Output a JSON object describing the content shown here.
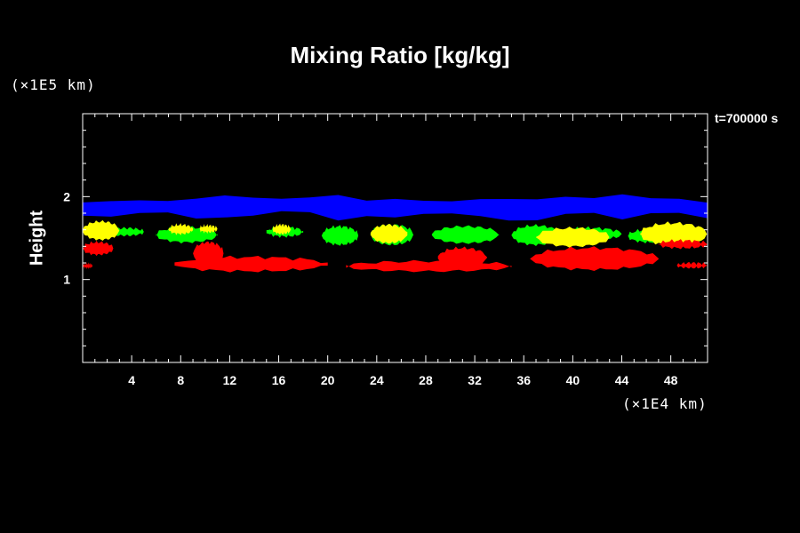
{
  "chart_data": {
    "type": "area",
    "title": "Mixing Ratio [kg/kg]",
    "ylabel": "Height",
    "xlabel": "",
    "x_unit": "(×1E4 km)",
    "y_unit": "(×1E5 km)",
    "annotation": "t=700000 s",
    "xlim": [
      0,
      51
    ],
    "ylim": [
      0,
      3
    ],
    "x_ticks": [
      4,
      8,
      12,
      16,
      20,
      24,
      28,
      32,
      36,
      40,
      44,
      48
    ],
    "y_ticks": [
      1,
      2
    ],
    "grid": false,
    "background": "#000000",
    "layers": [
      {
        "color": "#0000ff",
        "regions": [
          {
            "x": [
              0,
              51
            ],
            "y_bottom": [
              1.77,
              1.8,
              1.74,
              1.76,
              1.82,
              1.72,
              1.75,
              1.8,
              1.75,
              1.72,
              1.79,
              1.74,
              1.8,
              1.73
            ],
            "y_top": [
              1.93,
              1.96,
              1.97,
              2.0,
              1.98,
              2.01,
              1.97,
              1.94,
              1.99,
              1.96,
              2.0,
              2.01,
              1.98,
              1.94
            ]
          }
        ]
      },
      {
        "color": "#00ff00",
        "regions": [
          {
            "x": [
              2,
              5
            ],
            "y_bottom": 1.53,
            "y_top": 1.62
          },
          {
            "x": [
              6,
              11
            ],
            "y_bottom": 1.45,
            "y_top": 1.63
          },
          {
            "x": [
              15,
              18
            ],
            "y_bottom": 1.52,
            "y_top": 1.63
          },
          {
            "x": [
              19.5,
              22.5
            ],
            "y_bottom": 1.42,
            "y_top": 1.64
          },
          {
            "x": [
              23.5,
              27
            ],
            "y_bottom": 1.42,
            "y_top": 1.66
          },
          {
            "x": [
              28.5,
              34
            ],
            "y_bottom": 1.44,
            "y_top": 1.64
          },
          {
            "x": [
              35,
              39
            ],
            "y_bottom": 1.42,
            "y_top": 1.65
          },
          {
            "x": [
              39,
              44
            ],
            "y_bottom": 1.48,
            "y_top": 1.62
          },
          {
            "x": [
              44.5,
              48
            ],
            "y_bottom": 1.45,
            "y_top": 1.6
          }
        ]
      },
      {
        "color": "#ffff00",
        "regions": [
          {
            "x": [
              0,
              3
            ],
            "y_bottom": 1.48,
            "y_top": 1.7
          },
          {
            "x": [
              7,
              9
            ],
            "y_bottom": 1.55,
            "y_top": 1.66
          },
          {
            "x": [
              9.5,
              11
            ],
            "y_bottom": 1.57,
            "y_top": 1.65
          },
          {
            "x": [
              15.5,
              17
            ],
            "y_bottom": 1.55,
            "y_top": 1.66
          },
          {
            "x": [
              23.5,
              26.5
            ],
            "y_bottom": 1.44,
            "y_top": 1.66
          },
          {
            "x": [
              37,
              43
            ],
            "y_bottom": 1.4,
            "y_top": 1.62
          },
          {
            "x": [
              45.5,
              51
            ],
            "y_bottom": 1.42,
            "y_top": 1.68
          }
        ]
      },
      {
        "color": "#ff0000",
        "regions": [
          {
            "x": [
              0,
              2.5
            ],
            "y_bottom": 1.3,
            "y_top": 1.45
          },
          {
            "x": [
              0,
              0.8
            ],
            "y_bottom": 1.14,
            "y_top": 1.19
          },
          {
            "x": [
              7.5,
              20
            ],
            "y_bottom": 1.1,
            "y_top": 1.27
          },
          {
            "x": [
              9,
              11.5
            ],
            "y_bottom": 1.18,
            "y_top": 1.45
          },
          {
            "x": [
              21.5,
              35
            ],
            "y_bottom": 1.1,
            "y_top": 1.22
          },
          {
            "x": [
              29,
              33
            ],
            "y_bottom": 1.15,
            "y_top": 1.38
          },
          {
            "x": [
              36.5,
              47
            ],
            "y_bottom": 1.12,
            "y_top": 1.38
          },
          {
            "x": [
              47,
              51
            ],
            "y_bottom": 1.38,
            "y_top": 1.47
          },
          {
            "x": [
              48.5,
              51
            ],
            "y_bottom": 1.14,
            "y_top": 1.2
          }
        ]
      }
    ]
  }
}
